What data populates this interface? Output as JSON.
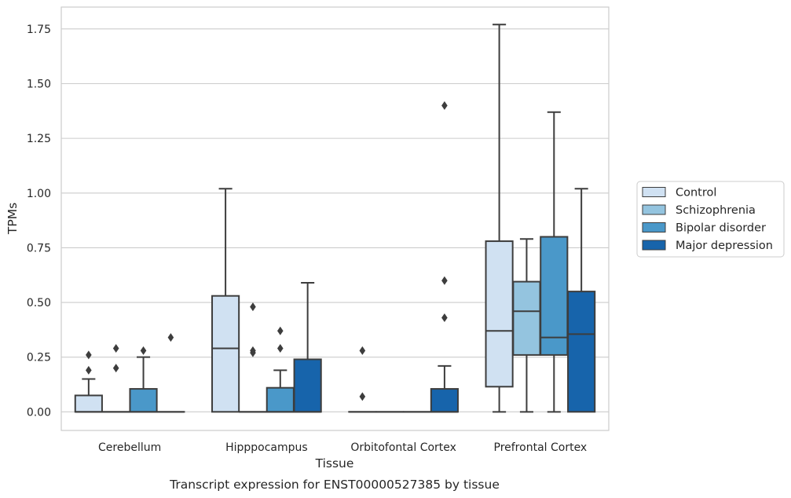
{
  "chart_data": {
    "type": "box",
    "xlabel": "Tissue",
    "ylabel": "TPMs",
    "caption": "Transcript expression for ENST00000527385 by tissue",
    "ylim": [
      -0.085,
      1.85
    ],
    "yticks": [
      "0.00",
      "0.25",
      "0.50",
      "0.75",
      "1.00",
      "1.25",
      "1.50",
      "1.75"
    ],
    "grid": true,
    "legend_position": "right",
    "categories": [
      "Cerebellum",
      "Hipppocampus",
      "Orbitofontal Cortex",
      "Prefrontal Cortex"
    ],
    "series": [
      {
        "name": "Control",
        "color": "#d0e1f2",
        "boxes": [
          {
            "q1": 0.0,
            "median": 0.0,
            "q3": 0.075,
            "whisker_low": 0.0,
            "whisker_high": 0.15,
            "outliers": [
              0.19,
              0.26
            ]
          },
          {
            "q1": 0.0,
            "median": 0.29,
            "q3": 0.53,
            "whisker_low": 0.0,
            "whisker_high": 1.02,
            "outliers": []
          },
          {
            "q1": 0.0,
            "median": 0.0,
            "q3": 0.0,
            "whisker_low": 0.0,
            "whisker_high": 0.0,
            "outliers": [
              0.07,
              0.28
            ]
          },
          {
            "q1": 0.115,
            "median": 0.37,
            "q3": 0.78,
            "whisker_low": 0.0,
            "whisker_high": 1.77,
            "outliers": []
          }
        ]
      },
      {
        "name": "Schizophrenia",
        "color": "#94c4df",
        "boxes": [
          {
            "q1": 0.0,
            "median": 0.0,
            "q3": 0.0,
            "whisker_low": 0.0,
            "whisker_high": 0.0,
            "outliers": [
              0.2,
              0.29
            ]
          },
          {
            "q1": 0.0,
            "median": 0.0,
            "q3": 0.0,
            "whisker_low": 0.0,
            "whisker_high": 0.0,
            "outliers": [
              0.27,
              0.28,
              0.48
            ]
          },
          {
            "q1": 0.0,
            "median": 0.0,
            "q3": 0.0,
            "whisker_low": 0.0,
            "whisker_high": 0.0,
            "outliers": []
          },
          {
            "q1": 0.26,
            "median": 0.46,
            "q3": 0.595,
            "whisker_low": 0.0,
            "whisker_high": 0.79,
            "outliers": []
          }
        ]
      },
      {
        "name": "Bipolar disorder",
        "color": "#4a98c9",
        "boxes": [
          {
            "q1": 0.0,
            "median": 0.0,
            "q3": 0.105,
            "whisker_low": 0.0,
            "whisker_high": 0.25,
            "outliers": [
              0.28
            ]
          },
          {
            "q1": 0.0,
            "median": 0.0,
            "q3": 0.11,
            "whisker_low": 0.0,
            "whisker_high": 0.19,
            "outliers": [
              0.29,
              0.37
            ]
          },
          {
            "q1": 0.0,
            "median": 0.0,
            "q3": 0.0,
            "whisker_low": 0.0,
            "whisker_high": 0.0,
            "outliers": []
          },
          {
            "q1": 0.26,
            "median": 0.34,
            "q3": 0.8,
            "whisker_low": 0.0,
            "whisker_high": 1.37,
            "outliers": []
          }
        ]
      },
      {
        "name": "Major depression",
        "color": "#1764ab",
        "boxes": [
          {
            "q1": 0.0,
            "median": 0.0,
            "q3": 0.0,
            "whisker_low": 0.0,
            "whisker_high": 0.0,
            "outliers": [
              0.34
            ]
          },
          {
            "q1": 0.0,
            "median": 0.0,
            "q3": 0.24,
            "whisker_low": 0.0,
            "whisker_high": 0.59,
            "outliers": []
          },
          {
            "q1": 0.0,
            "median": 0.0,
            "q3": 0.105,
            "whisker_low": 0.0,
            "whisker_high": 0.21,
            "outliers": [
              0.43,
              0.6,
              1.4
            ]
          },
          {
            "q1": 0.0,
            "median": 0.355,
            "q3": 0.55,
            "whisker_low": 0.0,
            "whisker_high": 1.02,
            "outliers": []
          }
        ]
      }
    ]
  }
}
